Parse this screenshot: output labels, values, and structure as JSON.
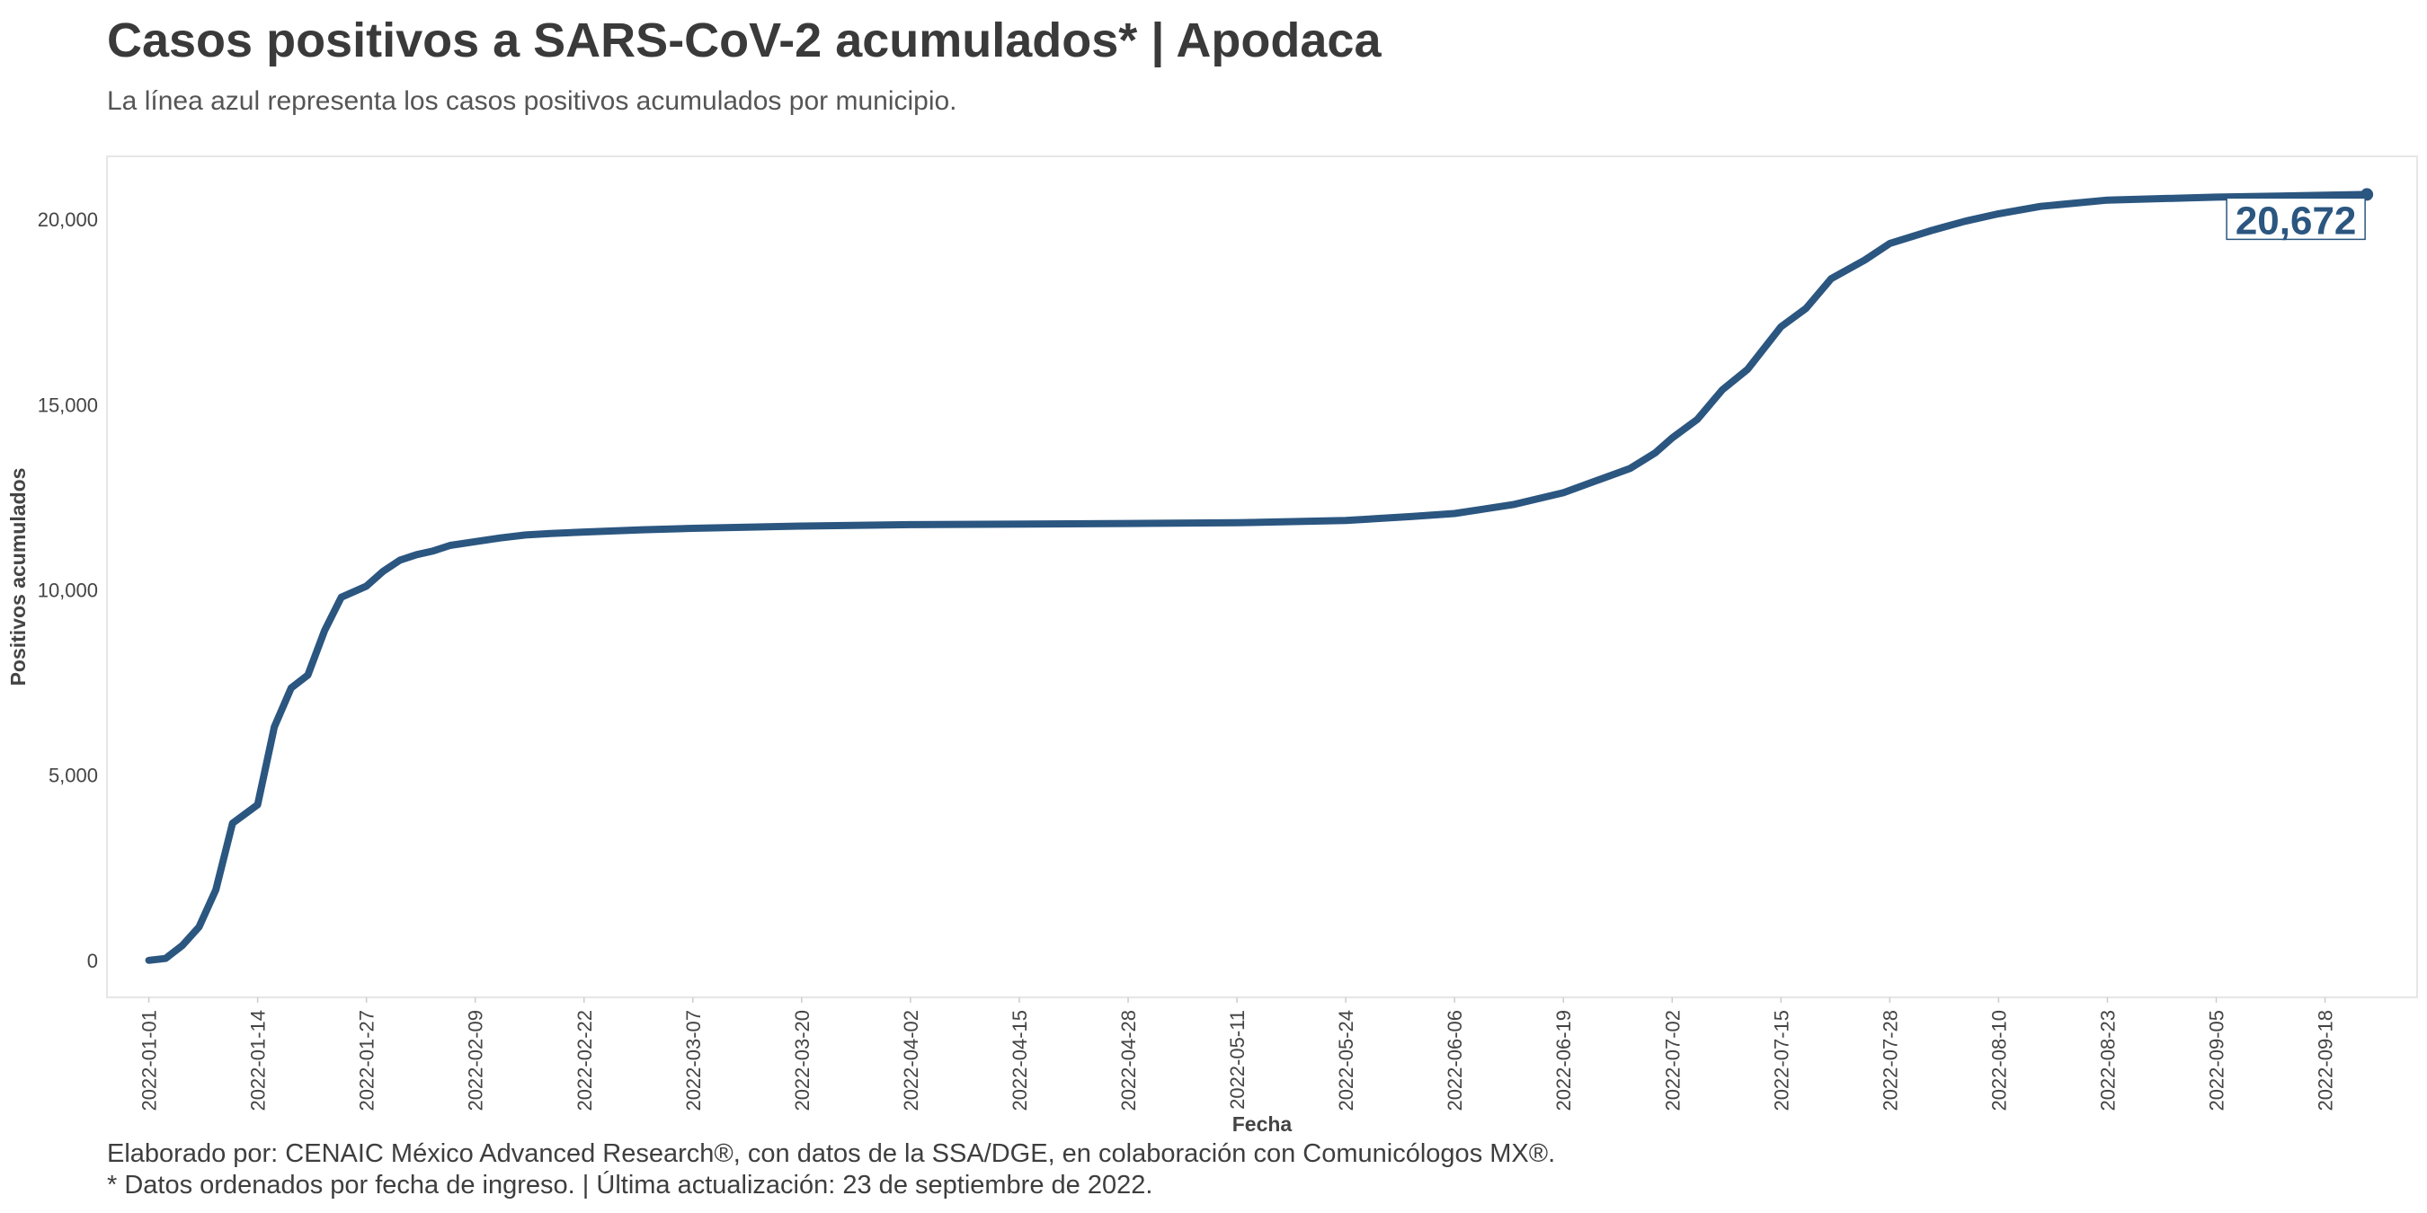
{
  "header": {
    "title": "Casos positivos a SARS-CoV-2 acumulados* | Apodaca",
    "subtitle": "La línea azul representa los casos positivos acumulados por municipio."
  },
  "footer": {
    "line1": "Elaborado por: CENAIC México Advanced Research®, con datos de la SSA/DGE, en colaboración con Comunicólogos MX®.",
    "line2": "* Datos ordenados por fecha de ingreso. | Última actualización: 23 de septiembre de 2022."
  },
  "chart_data": {
    "type": "line",
    "xlabel": "Fecha",
    "ylabel": "Positivos acumulados",
    "ylim": [
      -1000,
      21700
    ],
    "xlim": [
      "2021-12-27",
      "2022-09-29"
    ],
    "x_ticks": [
      "2022-01-01",
      "2022-01-14",
      "2022-01-27",
      "2022-02-09",
      "2022-02-22",
      "2022-03-07",
      "2022-03-20",
      "2022-04-02",
      "2022-04-15",
      "2022-04-28",
      "2022-05-11",
      "2022-05-24",
      "2022-06-06",
      "2022-06-19",
      "2022-07-02",
      "2022-07-15",
      "2022-07-28",
      "2022-08-10",
      "2022-08-23",
      "2022-09-05",
      "2022-09-18"
    ],
    "y_ticks": [
      0,
      5000,
      10000,
      15000,
      20000
    ],
    "y_tick_labels": [
      "0",
      "5,000",
      "10,000",
      "15,000",
      "20,000"
    ],
    "grid": false,
    "line_color": "#2b5680",
    "end_label": "20,672",
    "series": [
      {
        "name": "",
        "x": [
          "2022-01-01",
          "2022-01-03",
          "2022-01-05",
          "2022-01-07",
          "2022-01-09",
          "2022-01-11",
          "2022-01-14",
          "2022-01-16",
          "2022-01-18",
          "2022-01-20",
          "2022-01-22",
          "2022-01-24",
          "2022-01-27",
          "2022-01-29",
          "2022-01-31",
          "2022-02-02",
          "2022-02-04",
          "2022-02-06",
          "2022-02-09",
          "2022-02-12",
          "2022-02-15",
          "2022-02-18",
          "2022-02-22",
          "2022-03-01",
          "2022-03-07",
          "2022-03-20",
          "2022-04-02",
          "2022-04-28",
          "2022-05-11",
          "2022-05-24",
          "2022-06-01",
          "2022-06-06",
          "2022-06-13",
          "2022-06-19",
          "2022-06-23",
          "2022-06-27",
          "2022-06-30",
          "2022-07-02",
          "2022-07-05",
          "2022-07-08",
          "2022-07-11",
          "2022-07-15",
          "2022-07-18",
          "2022-07-21",
          "2022-07-25",
          "2022-07-28",
          "2022-08-02",
          "2022-08-06",
          "2022-08-10",
          "2022-08-15",
          "2022-08-23",
          "2022-09-05",
          "2022-09-18",
          "2022-09-23"
        ],
        "y": [
          0,
          50,
          400,
          900,
          1900,
          3700,
          4200,
          6300,
          7350,
          7700,
          8900,
          9800,
          10100,
          10500,
          10800,
          10950,
          11050,
          11200,
          11300,
          11400,
          11480,
          11520,
          11560,
          11620,
          11660,
          11720,
          11760,
          11790,
          11810,
          11870,
          11980,
          12060,
          12300,
          12620,
          12950,
          13280,
          13700,
          14100,
          14600,
          15400,
          15950,
          17100,
          17600,
          18400,
          18900,
          19350,
          19700,
          19950,
          20150,
          20350,
          20520,
          20600,
          20650,
          20672
        ]
      }
    ]
  }
}
